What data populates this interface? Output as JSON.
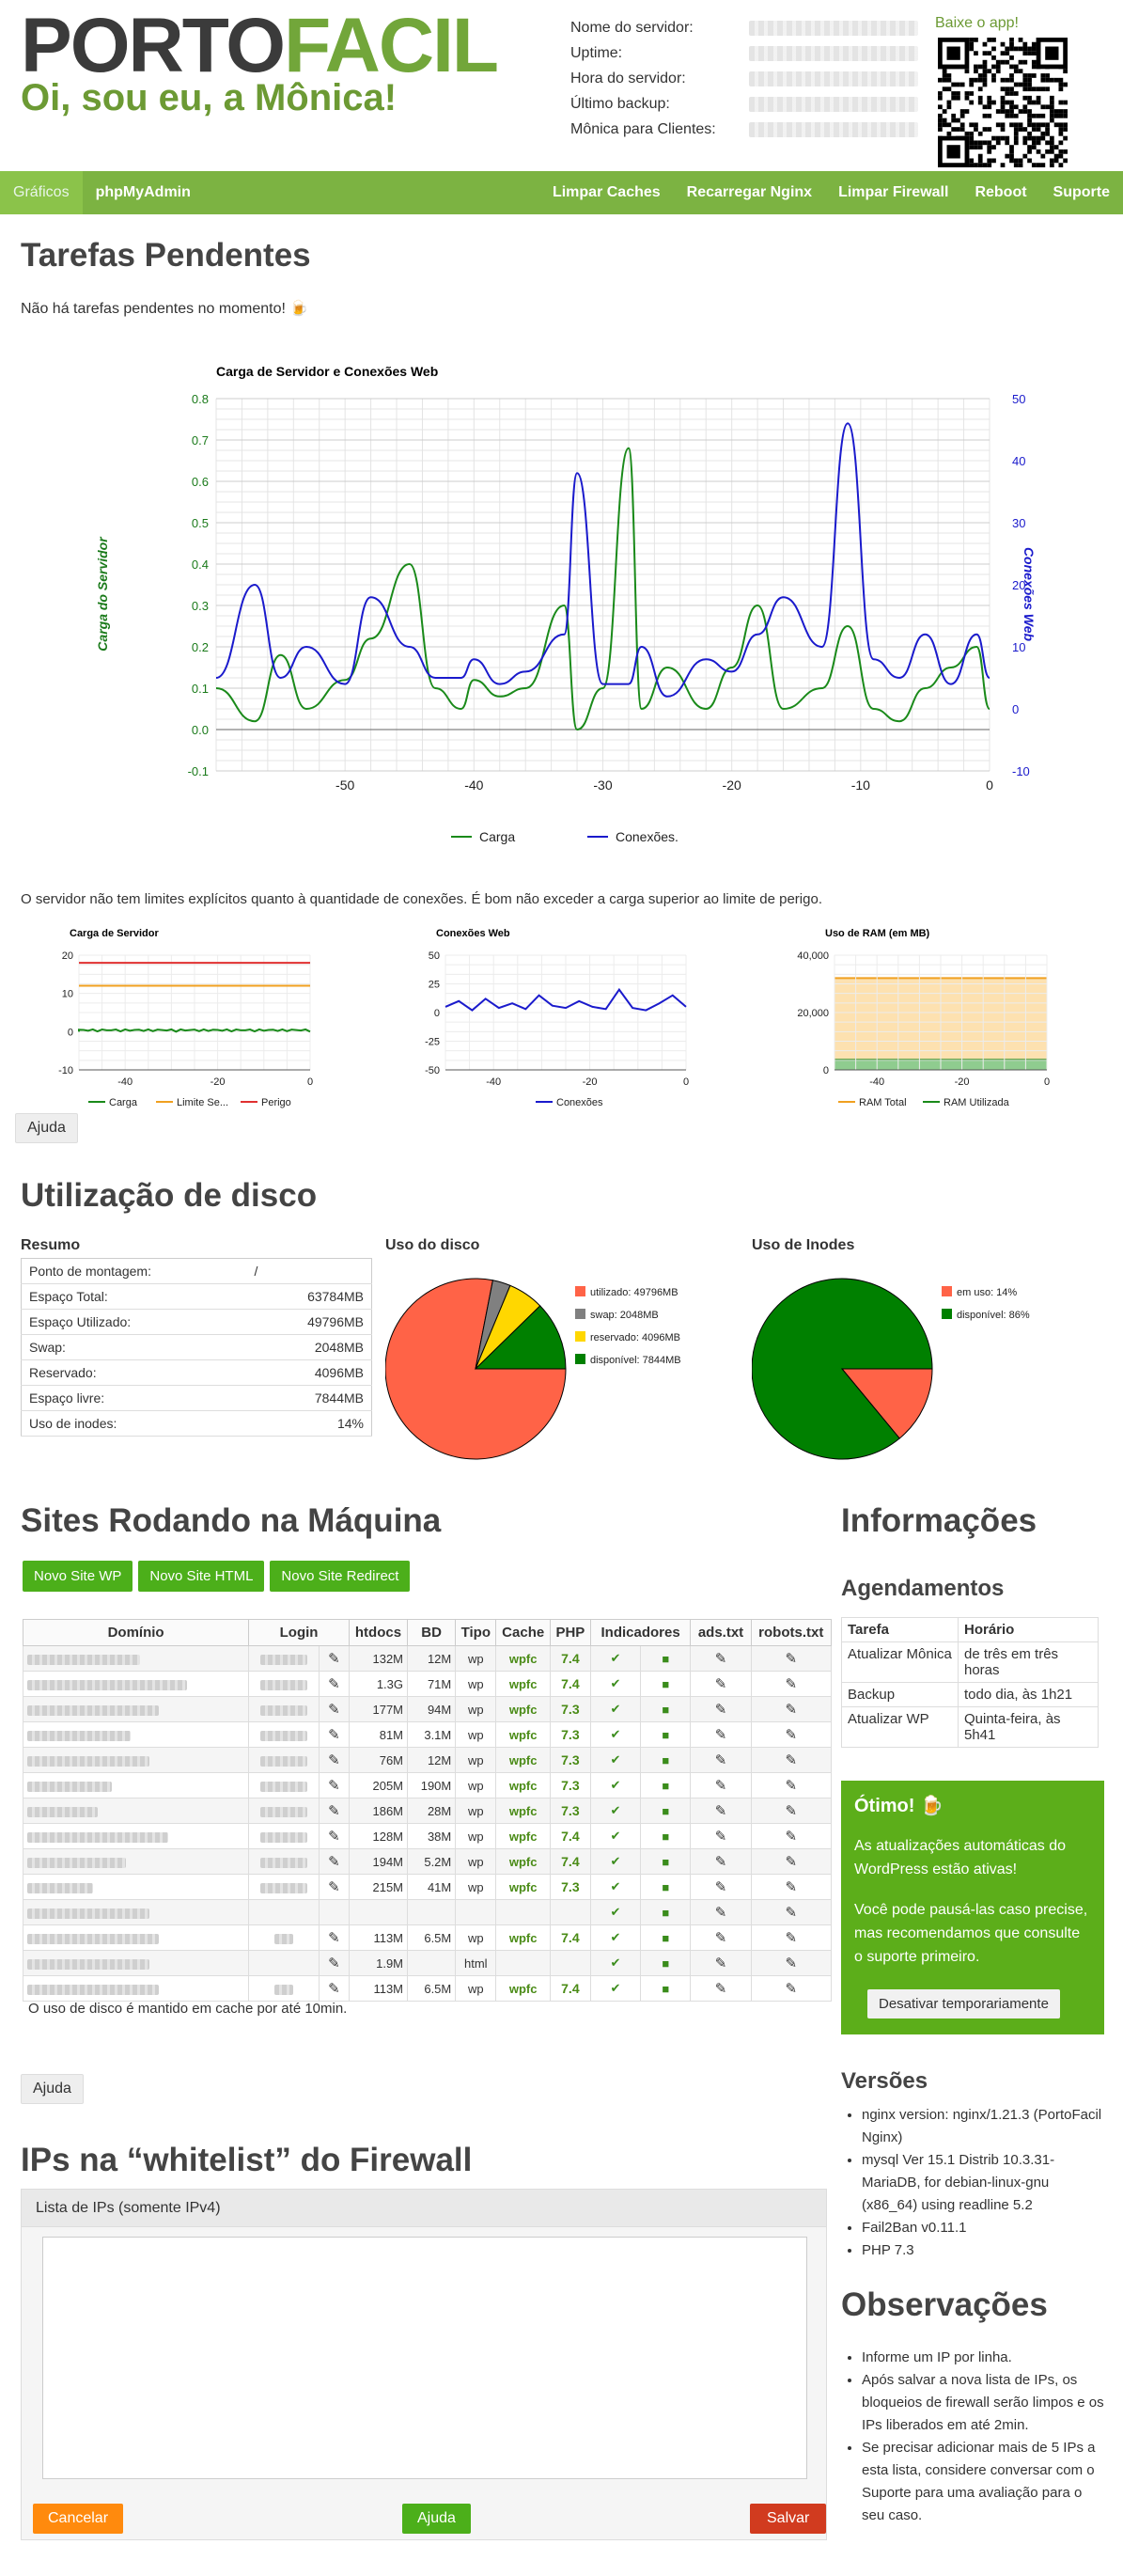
{
  "header": {
    "logo_a": "PORTO",
    "logo_b": "FACIL",
    "greeting": "Oi, sou eu, a Mônica!",
    "app_label": "Baixe o app!"
  },
  "server_info": [
    {
      "k": "Nome do servidor:"
    },
    {
      "k": "Uptime:"
    },
    {
      "k": "Hora do servidor:"
    },
    {
      "k": "Último backup:"
    },
    {
      "k": "Mônica para Clientes:"
    }
  ],
  "nav": {
    "left": [
      "Gráficos",
      "phpMyAdmin"
    ],
    "right": [
      "Limpar Caches",
      "Recarregar Nginx",
      "Limpar Firewall",
      "Reboot",
      "Suporte"
    ]
  },
  "tasks": {
    "title": "Tarefas Pendentes",
    "text": "Não há tarefas pendentes no momento! 🍺"
  },
  "main_chart": {
    "title": "Carga de Servidor e Conexões Web",
    "ylabel_left": "Carga do Servidor",
    "ylabel_right": "Conexões Web",
    "legend": [
      "Carga",
      "Conexões."
    ]
  },
  "chart_data": [
    {
      "type": "line",
      "title": "Carga de Servidor e Conexões Web",
      "xlabel": "",
      "x": [
        -60,
        -57,
        -55,
        -53,
        -50,
        -48,
        -45,
        -43,
        -41,
        -40,
        -38,
        -36,
        -33,
        -32,
        -30,
        -28,
        -27,
        -25,
        -22,
        -20,
        -18,
        -16,
        -13,
        -11,
        -9,
        -7,
        -5,
        -3,
        -1,
        0
      ],
      "series": [
        {
          "name": "Carga",
          "axis": "left",
          "values": [
            0.1,
            0.02,
            0.18,
            0.05,
            0.12,
            0.22,
            0.4,
            0.1,
            0.05,
            0.12,
            0.08,
            0.1,
            0.3,
            0.0,
            0.1,
            0.68,
            0.05,
            0.15,
            0.05,
            0.15,
            0.3,
            0.05,
            0.1,
            0.25,
            0.05,
            0.02,
            0.1,
            0.15,
            0.2,
            0.05
          ]
        },
        {
          "name": "Conexões.",
          "axis": "right",
          "values": [
            5,
            20,
            5,
            10,
            4,
            18,
            10,
            5,
            5,
            8,
            4,
            6,
            12,
            38,
            4,
            4,
            10,
            2,
            8,
            6,
            12,
            18,
            10,
            46,
            8,
            5,
            12,
            4,
            12,
            5
          ]
        }
      ],
      "ylim_left": [
        -0.1,
        0.8
      ],
      "ylim_right": [
        -10,
        50
      ],
      "xlim": [
        -60,
        0
      ],
      "xticks": [
        -50,
        -40,
        -30,
        -20,
        -10,
        0
      ],
      "yticks_left": [
        -0.1,
        0.0,
        0.1,
        0.2,
        0.3,
        0.4,
        0.5,
        0.6,
        0.7,
        0.8
      ],
      "yticks_right": [
        -10,
        0,
        10,
        20,
        30,
        40,
        50
      ],
      "grid": true,
      "legend": "bottom"
    },
    {
      "type": "line",
      "title": "Carga de Servidor",
      "x": [
        -50,
        0
      ],
      "series": [
        {
          "name": "Carga",
          "values": [
            0,
            0
          ]
        },
        {
          "name": "Limite Se...",
          "values": [
            12,
            12
          ]
        },
        {
          "name": "Perigo",
          "values": [
            18,
            18
          ]
        }
      ],
      "ylim": [
        -10,
        20
      ],
      "yticks": [
        -10,
        0,
        10,
        20
      ],
      "xticks": [
        -40,
        -20,
        0
      ]
    },
    {
      "type": "line",
      "title": "Conexões Web",
      "series": [
        {
          "name": "Conexões",
          "values": [
            5,
            10,
            2,
            12,
            4,
            8,
            3,
            15,
            6,
            4,
            10,
            5,
            3,
            20,
            4,
            2,
            8,
            15,
            5
          ]
        }
      ],
      "ylim": [
        -50,
        50
      ],
      "yticks": [
        -50,
        -25,
        0,
        25,
        50
      ],
      "xticks": [
        -40,
        -20,
        0
      ]
    },
    {
      "type": "area",
      "title": "Uso de RAM (em MB)",
      "series": [
        {
          "name": "RAM Total",
          "values": [
            32000,
            32000
          ]
        },
        {
          "name": "RAM Utilizada",
          "values": [
            3500,
            3500
          ]
        }
      ],
      "ylim": [
        0,
        40000
      ],
      "yticks": [
        "0",
        "20,000",
        "40,000"
      ],
      "xticks": [
        -40,
        -20,
        0
      ]
    },
    {
      "type": "pie",
      "title": "Uso do disco",
      "labels": [
        "utilizado: 49796MB",
        "swap: 2048MB",
        "reservado: 4096MB",
        "disponível: 7844MB"
      ],
      "values": [
        49796,
        2048,
        4096,
        7844
      ],
      "colors": [
        "#ff6347",
        "#808080",
        "#ffd700",
        "#008000"
      ]
    },
    {
      "type": "pie",
      "title": "Uso de Inodes",
      "labels": [
        "em uso: 14%",
        "disponível: 86%"
      ],
      "values": [
        14,
        86
      ],
      "colors": [
        "#ff6347",
        "#008000"
      ]
    }
  ],
  "small_charts": {
    "c1": "Carga de Servidor",
    "c1_leg": [
      "Carga",
      "Limite Se...",
      "Perigo"
    ],
    "c2": "Conexões Web",
    "c2_leg": [
      "Conexões"
    ],
    "c3": "Uso de RAM (em MB)",
    "c3_leg": [
      "RAM Total",
      "RAM Utilizada"
    ]
  },
  "limit_text": "O servidor não tem limites explícitos quanto à quantidade de conexões. É bom não exceder a carga superior ao limite de perigo.",
  "help": "Ajuda",
  "disk": {
    "title": "Utilização de disco",
    "resumo": "Resumo",
    "uso": "Uso do disco",
    "inodes": "Uso de Inodes",
    "rows": [
      [
        "Ponto de montagem:",
        "/"
      ],
      [
        "Espaço Total:",
        "63784MB"
      ],
      [
        "Espaço Utilizado:",
        "49796MB"
      ],
      [
        "Swap:",
        "2048MB"
      ],
      [
        "Reservado:",
        "4096MB"
      ],
      [
        "Espaço livre:",
        "7844MB"
      ],
      [
        "Uso de inodes:",
        "14%"
      ]
    ]
  },
  "sites": {
    "title": "Sites Rodando na Máquina",
    "buttons": [
      "Novo Site WP",
      "Novo Site HTML",
      "Novo Site Redirect"
    ],
    "headers": [
      "Domínio",
      "Login",
      "",
      "htdocs",
      "BD",
      "Tipo",
      "Cache",
      "PHP",
      "Indicadores",
      "",
      "ads.txt",
      "robots.txt"
    ],
    "rows": [
      [
        "132M",
        "12M",
        "wp",
        "wpfc",
        "7.4"
      ],
      [
        "1.3G",
        "71M",
        "wp",
        "wpfc",
        "7.4"
      ],
      [
        "177M",
        "94M",
        "wp",
        "wpfc",
        "7.3"
      ],
      [
        "81M",
        "3.1M",
        "wp",
        "wpfc",
        "7.3"
      ],
      [
        "76M",
        "12M",
        "wp",
        "wpfc",
        "7.3"
      ],
      [
        "205M",
        "190M",
        "wp",
        "wpfc",
        "7.3"
      ],
      [
        "186M",
        "28M",
        "wp",
        "wpfc",
        "7.3"
      ],
      [
        "128M",
        "38M",
        "wp",
        "wpfc",
        "7.4"
      ],
      [
        "194M",
        "5.2M",
        "wp",
        "wpfc",
        "7.4"
      ],
      [
        "215M",
        "41M",
        "wp",
        "wpfc",
        "7.3"
      ],
      [
        "",
        "",
        "",
        "",
        ""
      ],
      [
        "113M",
        "6.5M",
        "wp",
        "wpfc",
        "7.4"
      ],
      [
        "1.9M",
        "",
        "html",
        "",
        ""
      ],
      [
        "113M",
        "6.5M",
        "wp",
        "wpfc",
        "7.4"
      ]
    ],
    "note": "O uso de disco é mantido em cache por até 10min."
  },
  "info": {
    "title": "Informações",
    "agend": "Agendamentos",
    "th": [
      "Tarefa",
      "Horário"
    ],
    "rows": [
      [
        "Atualizar Mônica",
        "de três em três horas"
      ],
      [
        "Backup",
        "todo dia, às 1h21"
      ],
      [
        "Atualizar WP",
        "Quinta-feira, às 5h41"
      ]
    ]
  },
  "otimo": {
    "title": "Ótimo! 🍺",
    "p1": "As atualizações automáticas do WordPress estão ativas!",
    "p2": "Você pode pausá-las caso precise, mas recomendamos que consulte o suporte primeiro.",
    "btn": "Desativar temporariamente"
  },
  "versions": {
    "title": "Versões",
    "items": [
      "nginx version: nginx/1.21.3 (PortoFacil Nginx)",
      "mysql Ver 15.1 Distrib 10.3.31-MariaDB, for debian-linux-gnu (x86_64) using readline 5.2",
      "Fail2Ban v0.11.1",
      "PHP 7.3"
    ]
  },
  "whitelist": {
    "title": "IPs na “whitelist” do Firewall",
    "label": "Lista de IPs (somente IPv4)",
    "cancel": "Cancelar",
    "help": "Ajuda",
    "save": "Salvar"
  },
  "obs": {
    "title": "Observações",
    "items": [
      "Informe um IP por linha.",
      "Após salvar a nova lista de IPs, os bloqueios de firewall serão limpos e os IPs liberados em até 2min.",
      "Se precisar adicionar mais de 5 IPs a esta lista, considere conversar com o Suporte para uma avaliação para o seu caso."
    ]
  }
}
